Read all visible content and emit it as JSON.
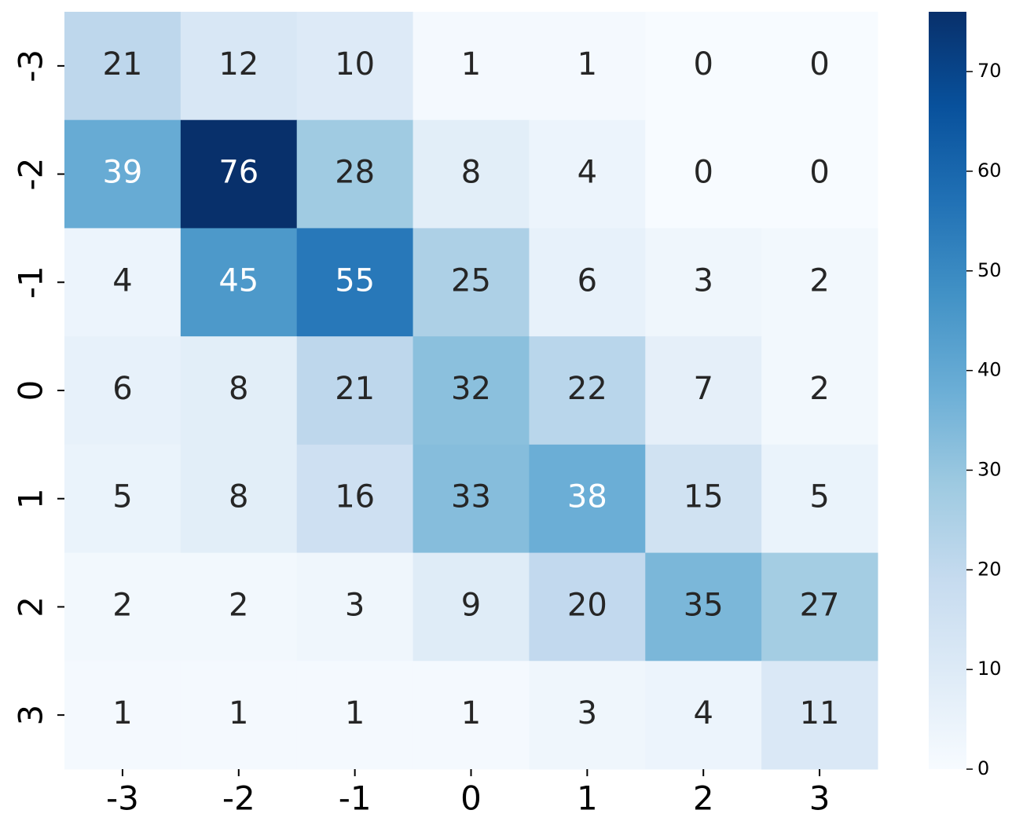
{
  "chart_data": {
    "type": "heatmap",
    "x_categories": [
      "-3",
      "-2",
      "-1",
      "0",
      "1",
      "2",
      "3"
    ],
    "y_categories": [
      "-3",
      "-2",
      "-1",
      "0",
      "1",
      "2",
      "3"
    ],
    "values": [
      [
        21,
        12,
        10,
        1,
        1,
        0,
        0
      ],
      [
        39,
        76,
        28,
        8,
        4,
        0,
        0
      ],
      [
        4,
        45,
        55,
        25,
        6,
        3,
        2
      ],
      [
        6,
        8,
        21,
        32,
        22,
        7,
        2
      ],
      [
        5,
        8,
        16,
        33,
        38,
        15,
        5
      ],
      [
        2,
        2,
        3,
        9,
        20,
        35,
        27
      ],
      [
        1,
        1,
        1,
        1,
        3,
        4,
        11
      ]
    ],
    "colormap": [
      "#f7fbff",
      "#deebf7",
      "#c6dbef",
      "#9ecae1",
      "#6baed6",
      "#4292c6",
      "#2171b5",
      "#08519c",
      "#08306b"
    ],
    "clim": [
      0,
      76
    ],
    "cticks": [
      0,
      10,
      20,
      30,
      40,
      50,
      60,
      70
    ]
  }
}
